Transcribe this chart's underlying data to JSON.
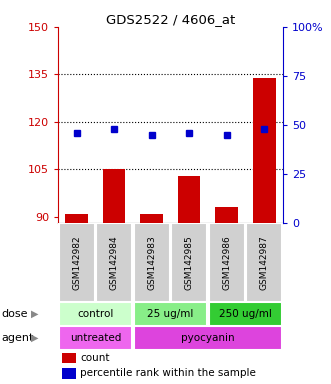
{
  "title": "GDS2522 / 4606_at",
  "samples": [
    "GSM142982",
    "GSM142984",
    "GSM142983",
    "GSM142985",
    "GSM142986",
    "GSM142987"
  ],
  "counts": [
    91,
    105,
    91,
    103,
    93,
    134
  ],
  "percentiles": [
    46,
    48,
    45,
    46,
    45,
    48
  ],
  "ylim_left": [
    88,
    150
  ],
  "ylim_right": [
    0,
    100
  ],
  "yticks_left": [
    90,
    105,
    120,
    135,
    150
  ],
  "yticks_right": [
    0,
    25,
    50,
    75,
    100
  ],
  "ytick_labels_right": [
    "0",
    "25",
    "50",
    "75",
    "100%"
  ],
  "bar_color": "#cc0000",
  "point_color": "#0000cc",
  "dose_groups": [
    {
      "label": "control",
      "cols": [
        0,
        1
      ],
      "color": "#ccffcc"
    },
    {
      "label": "25 ug/ml",
      "cols": [
        2,
        3
      ],
      "color": "#88ee88"
    },
    {
      "label": "250 ug/ml",
      "cols": [
        4,
        5
      ],
      "color": "#33cc33"
    }
  ],
  "agent_groups": [
    {
      "label": "untreated",
      "cols": [
        0,
        1
      ],
      "color": "#ee66ee"
    },
    {
      "label": "pyocyanin",
      "cols": [
        2,
        3,
        4,
        5
      ],
      "color": "#dd44dd"
    }
  ],
  "dose_label": "dose",
  "agent_label": "agent",
  "legend_count_label": "count",
  "legend_pct_label": "percentile rank within the sample",
  "bar_width": 0.6,
  "sample_box_color": "#d0d0d0",
  "grid_dotted_color": "black"
}
